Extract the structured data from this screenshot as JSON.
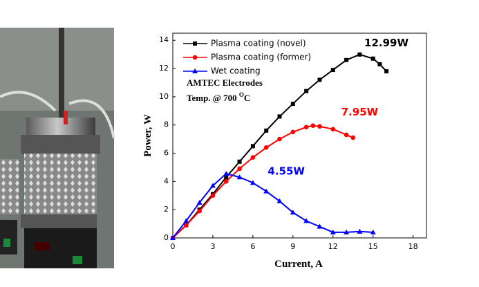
{
  "chart_data": {
    "type": "line",
    "x_label": "Current, A",
    "y_label": "Power, W",
    "xlim": [
      0,
      19
    ],
    "xticks": [
      0,
      3,
      6,
      9,
      12,
      15,
      18
    ],
    "ylim": [
      0,
      14.5
    ],
    "yticks": [
      0,
      2,
      4,
      6,
      8,
      10,
      12,
      14
    ],
    "legend": "upper left",
    "series": [
      {
        "name": "Plasma coating (novel)",
        "color": "#000000",
        "marker": "square",
        "x": [
          0,
          1,
          2,
          3,
          4,
          5,
          6,
          7,
          8,
          9,
          10,
          11,
          12,
          13,
          14,
          15,
          15.5,
          16
        ],
        "values": [
          0,
          0.9,
          2.0,
          3.1,
          4.3,
          5.4,
          6.5,
          7.6,
          8.6,
          9.5,
          10.4,
          11.2,
          11.9,
          12.6,
          12.99,
          12.7,
          12.3,
          11.8
        ]
      },
      {
        "name": "Plasma coating (former)",
        "color": "#ff0000",
        "marker": "circle",
        "x": [
          0,
          1,
          2,
          3,
          4,
          5,
          6,
          7,
          8,
          9,
          10,
          10.5,
          11,
          12,
          13,
          13.5
        ],
        "values": [
          0,
          0.9,
          1.9,
          3.0,
          4.0,
          4.9,
          5.7,
          6.4,
          7.0,
          7.5,
          7.85,
          7.95,
          7.9,
          7.7,
          7.3,
          7.1
        ]
      },
      {
        "name": "Wet coating",
        "color": "#0000ff",
        "marker": "triangle",
        "x": [
          0,
          1,
          2,
          3,
          4,
          5,
          6,
          7,
          8,
          9,
          10,
          11,
          12,
          13,
          14,
          15
        ],
        "values": [
          0,
          1.2,
          2.5,
          3.7,
          4.55,
          4.3,
          3.9,
          3.3,
          2.6,
          1.8,
          1.2,
          0.8,
          0.4,
          0.4,
          0.45,
          0.4
        ]
      }
    ],
    "annotations": [
      {
        "text": "12.99W",
        "color": "#000000",
        "x": 16,
        "y": 13.8
      },
      {
        "text": "7.95W",
        "color": "#ff0000",
        "x": 14,
        "y": 8.9
      },
      {
        "text": "4.55W",
        "color": "#0000ff",
        "x": 8.5,
        "y": 4.7
      }
    ],
    "note_title": "AMTEC Electrodes",
    "note_temp": "Temp. @ 700",
    "note_sup": "O",
    "note_unit": "C"
  }
}
